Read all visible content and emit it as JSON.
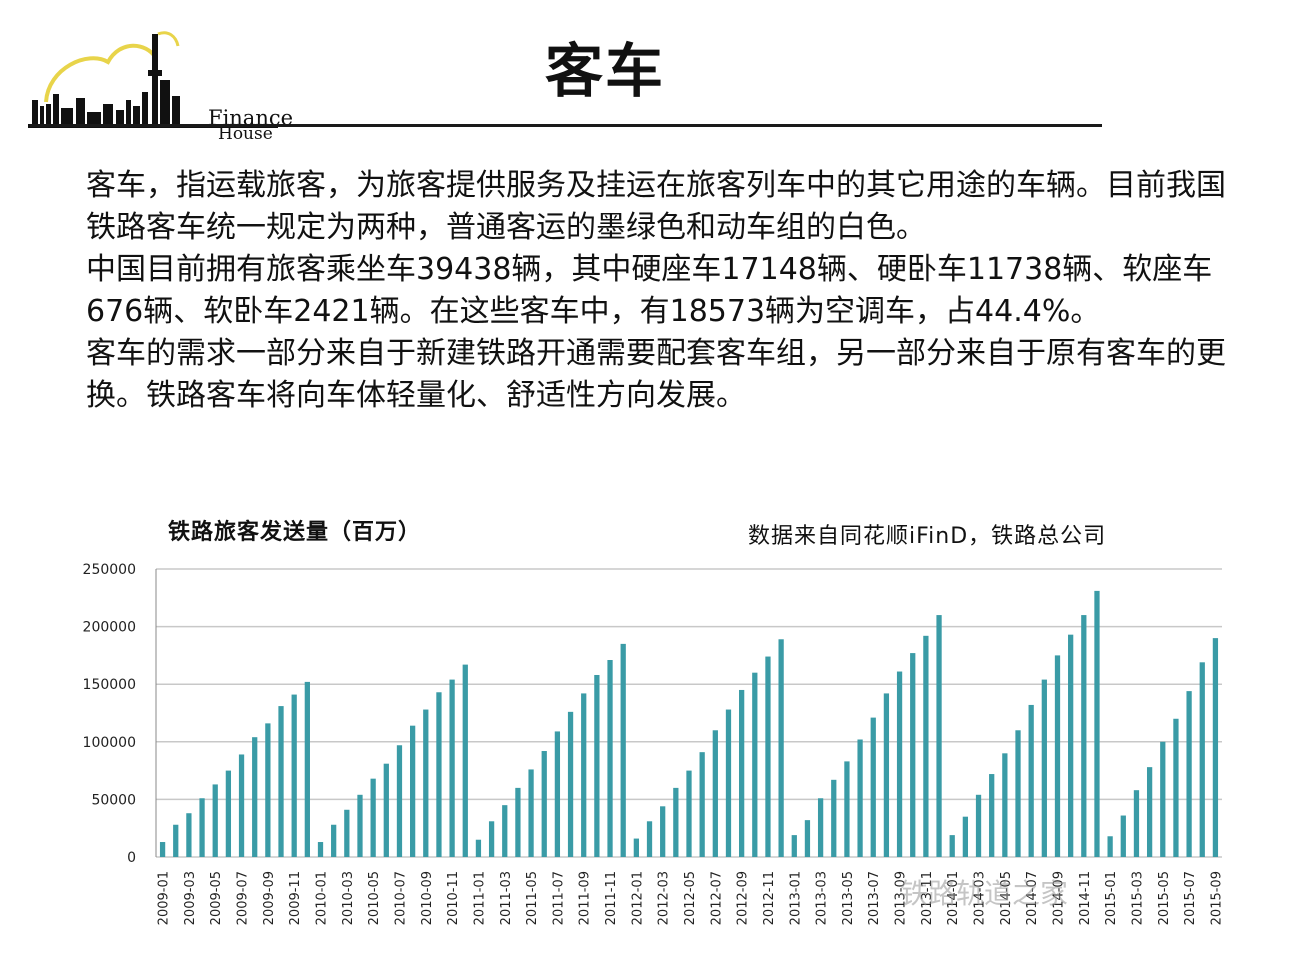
{
  "header": {
    "logo_text_line1": "Finance",
    "logo_text_line2": "House",
    "title": "客车"
  },
  "body_text": {
    "p1": "客车，指运载旅客，为旅客提供服务及挂运在旅客列车中的其它用途的车辆。目前我国铁路客车统一规定为两种，普通客运的墨绿色和动车组的白色。",
    "p2": "中国目前拥有旅客乘坐车39438辆，其中硬座车17148辆、硬卧车11738辆、软座车676辆、软卧车2421辆。在这些客车中，有18573辆为空调车，占44.4%。",
    "p3": "客车的需求一部分来自于新建铁路开通需要配套客车组，另一部分来自于原有客车的更换。铁路客车将向车体轻量化、舒适性方向发展。"
  },
  "watermark": "铁路轨道之家",
  "colors": {
    "bar": "#3a9ba6",
    "grid": "#c8c8c8",
    "axis": "#888888",
    "logo_arc": "#e8d44a"
  },
  "chart_data": {
    "type": "bar",
    "title": "铁路旅客发送量（百万）",
    "source_note": "数据来自同花顺iFinD，铁路总公司",
    "xlabel": "",
    "ylabel": "",
    "ylim": [
      0,
      250000
    ],
    "yticks": [
      "250000",
      "200000",
      "150000",
      "100000",
      "50000",
      "0"
    ],
    "ytick_values": [
      250000,
      200000,
      150000,
      100000,
      50000,
      0
    ],
    "grid": true,
    "categories": [
      "2009-01",
      "2009-02",
      "2009-03",
      "2009-04",
      "2009-05",
      "2009-06",
      "2009-07",
      "2009-08",
      "2009-09",
      "2009-10",
      "2009-11",
      "2009-12",
      "2010-01",
      "2010-02",
      "2010-03",
      "2010-04",
      "2010-05",
      "2010-06",
      "2010-07",
      "2010-08",
      "2010-09",
      "2010-10",
      "2010-11",
      "2010-12",
      "2011-01",
      "2011-02",
      "2011-03",
      "2011-04",
      "2011-05",
      "2011-06",
      "2011-07",
      "2011-08",
      "2011-09",
      "2011-10",
      "2011-11",
      "2011-12",
      "2012-01",
      "2012-02",
      "2012-03",
      "2012-04",
      "2012-05",
      "2012-06",
      "2012-07",
      "2012-08",
      "2012-09",
      "2012-10",
      "2012-11",
      "2012-12",
      "2013-01",
      "2013-02",
      "2013-03",
      "2013-04",
      "2013-05",
      "2013-06",
      "2013-07",
      "2013-08",
      "2013-09",
      "2013-10",
      "2013-11",
      "2013-12",
      "2014-01",
      "2014-02",
      "2014-03",
      "2014-04",
      "2014-05",
      "2014-06",
      "2014-07",
      "2014-08",
      "2014-09",
      "2014-10",
      "2014-11",
      "2014-12",
      "2015-01",
      "2015-02",
      "2015-03",
      "2015-04",
      "2015-05",
      "2015-06",
      "2015-07",
      "2015-08",
      "2015-09"
    ],
    "tick_labels": [
      "2009-01",
      "2009-03",
      "2009-05",
      "2009-07",
      "2009-09",
      "2009-11",
      "2010-01",
      "2010-03",
      "2010-05",
      "2010-07",
      "2010-09",
      "2010-11",
      "2011-01",
      "2011-03",
      "2011-05",
      "2011-07",
      "2011-09",
      "2011-11",
      "2012-01",
      "2012-03",
      "2012-05",
      "2012-07",
      "2012-09",
      "2012-11",
      "2013-01",
      "2013-03",
      "2013-05",
      "2013-07",
      "2013-09",
      "2013-11",
      "2014-01",
      "2014-03",
      "2014-05",
      "2014-07",
      "2014-09",
      "2014-11",
      "2015-01",
      "2015-03",
      "2015-05",
      "2015-07",
      "2015-09"
    ],
    "values": [
      13000,
      28000,
      38000,
      51000,
      63000,
      75000,
      89000,
      104000,
      116000,
      131000,
      141000,
      152000,
      13000,
      28000,
      41000,
      54000,
      68000,
      81000,
      97000,
      114000,
      128000,
      143000,
      154000,
      167000,
      15000,
      31000,
      45000,
      60000,
      76000,
      92000,
      109000,
      126000,
      142000,
      158000,
      171000,
      185000,
      16000,
      31000,
      44000,
      60000,
      75000,
      91000,
      110000,
      128000,
      145000,
      160000,
      174000,
      189000,
      19000,
      32000,
      51000,
      67000,
      83000,
      102000,
      121000,
      142000,
      161000,
      177000,
      192000,
      210000,
      19000,
      35000,
      54000,
      72000,
      90000,
      110000,
      132000,
      154000,
      175000,
      193000,
      210000,
      231000,
      18000,
      36000,
      58000,
      78000,
      100000,
      120000,
      144000,
      169000,
      190000
    ]
  }
}
